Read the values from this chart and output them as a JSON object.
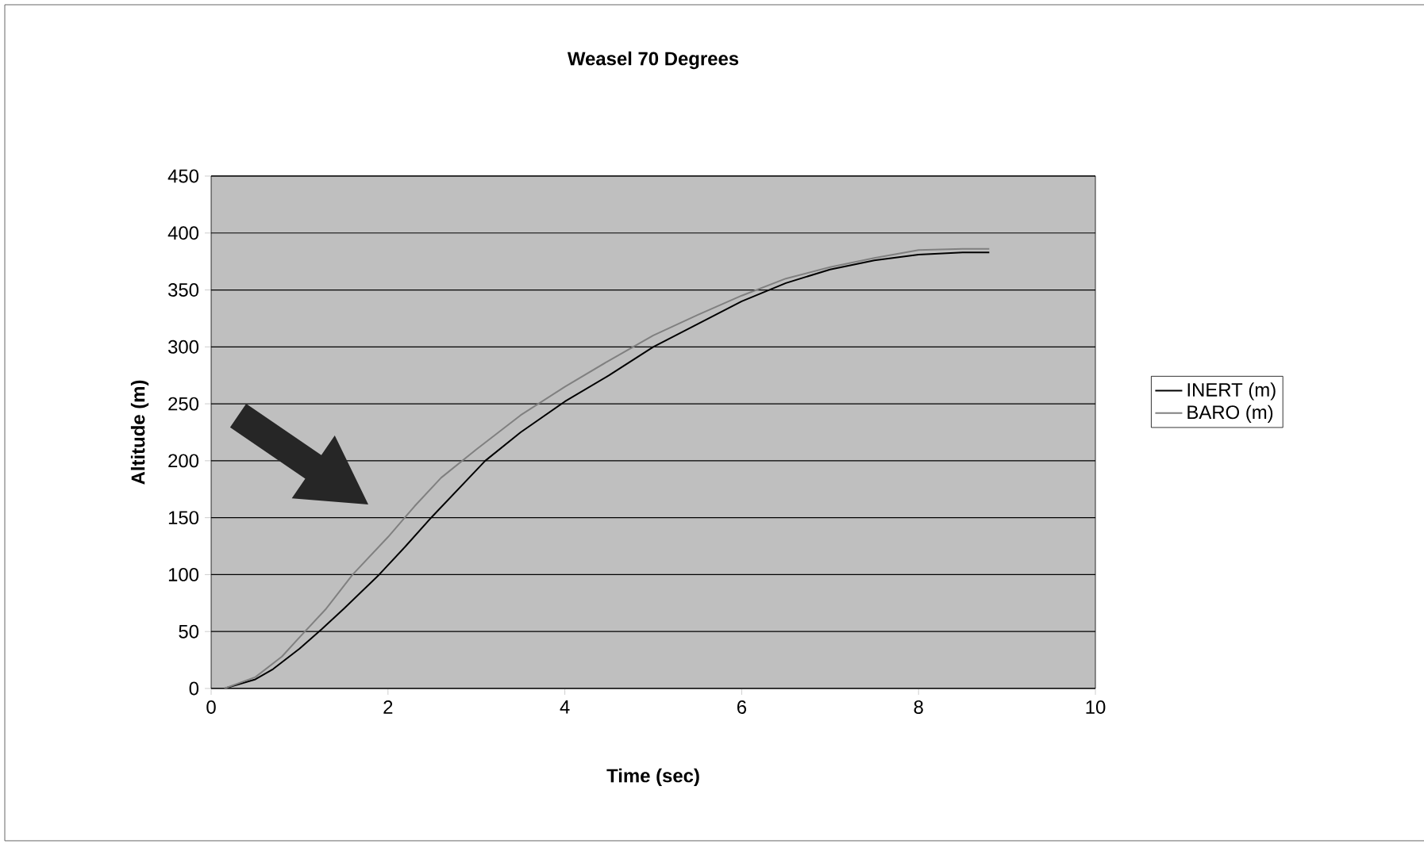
{
  "chart_data": {
    "type": "line",
    "title": "Weasel 70 Degrees",
    "xlabel": "Time (sec)",
    "ylabel": "Altitude (m)",
    "xlim": [
      0,
      10
    ],
    "xticks": [
      0,
      2,
      4,
      6,
      8,
      10
    ],
    "ylim": [
      0,
      450
    ],
    "yticks": [
      0,
      50,
      100,
      150,
      200,
      250,
      300,
      350,
      400,
      450
    ],
    "grid": "y",
    "legend": "right",
    "marker": "none",
    "line_style": "solid",
    "series": [
      {
        "name": "INERT (m)",
        "color": "#000000",
        "x": [
          0.15,
          0.5,
          0.7,
          1.0,
          1.25,
          1.5,
          1.9,
          2.2,
          2.5,
          3.1,
          3.5,
          4.0,
          4.5,
          5.0,
          5.5,
          6.0,
          6.5,
          7.0,
          7.5,
          8.0,
          8.5,
          8.8
        ],
        "values": [
          0,
          8,
          17,
          35,
          52,
          70,
          100,
          125,
          151,
          200,
          225,
          252,
          275,
          300,
          320,
          340,
          356,
          368,
          376,
          381,
          383,
          383
        ]
      },
      {
        "name": "BARO (m)",
        "color": "#808080",
        "x": [
          0.15,
          0.5,
          0.8,
          1.0,
          1.3,
          1.6,
          2.0,
          2.3,
          2.6,
          3.0,
          3.5,
          4.0,
          4.5,
          5.0,
          5.5,
          6.0,
          6.5,
          7.0,
          7.5,
          8.0,
          8.5,
          8.8
        ],
        "values": [
          0,
          10,
          28,
          45,
          70,
          100,
          133,
          160,
          185,
          210,
          240,
          265,
          288,
          310,
          328,
          345,
          360,
          370,
          378,
          385,
          386,
          386
        ]
      }
    ]
  }
}
